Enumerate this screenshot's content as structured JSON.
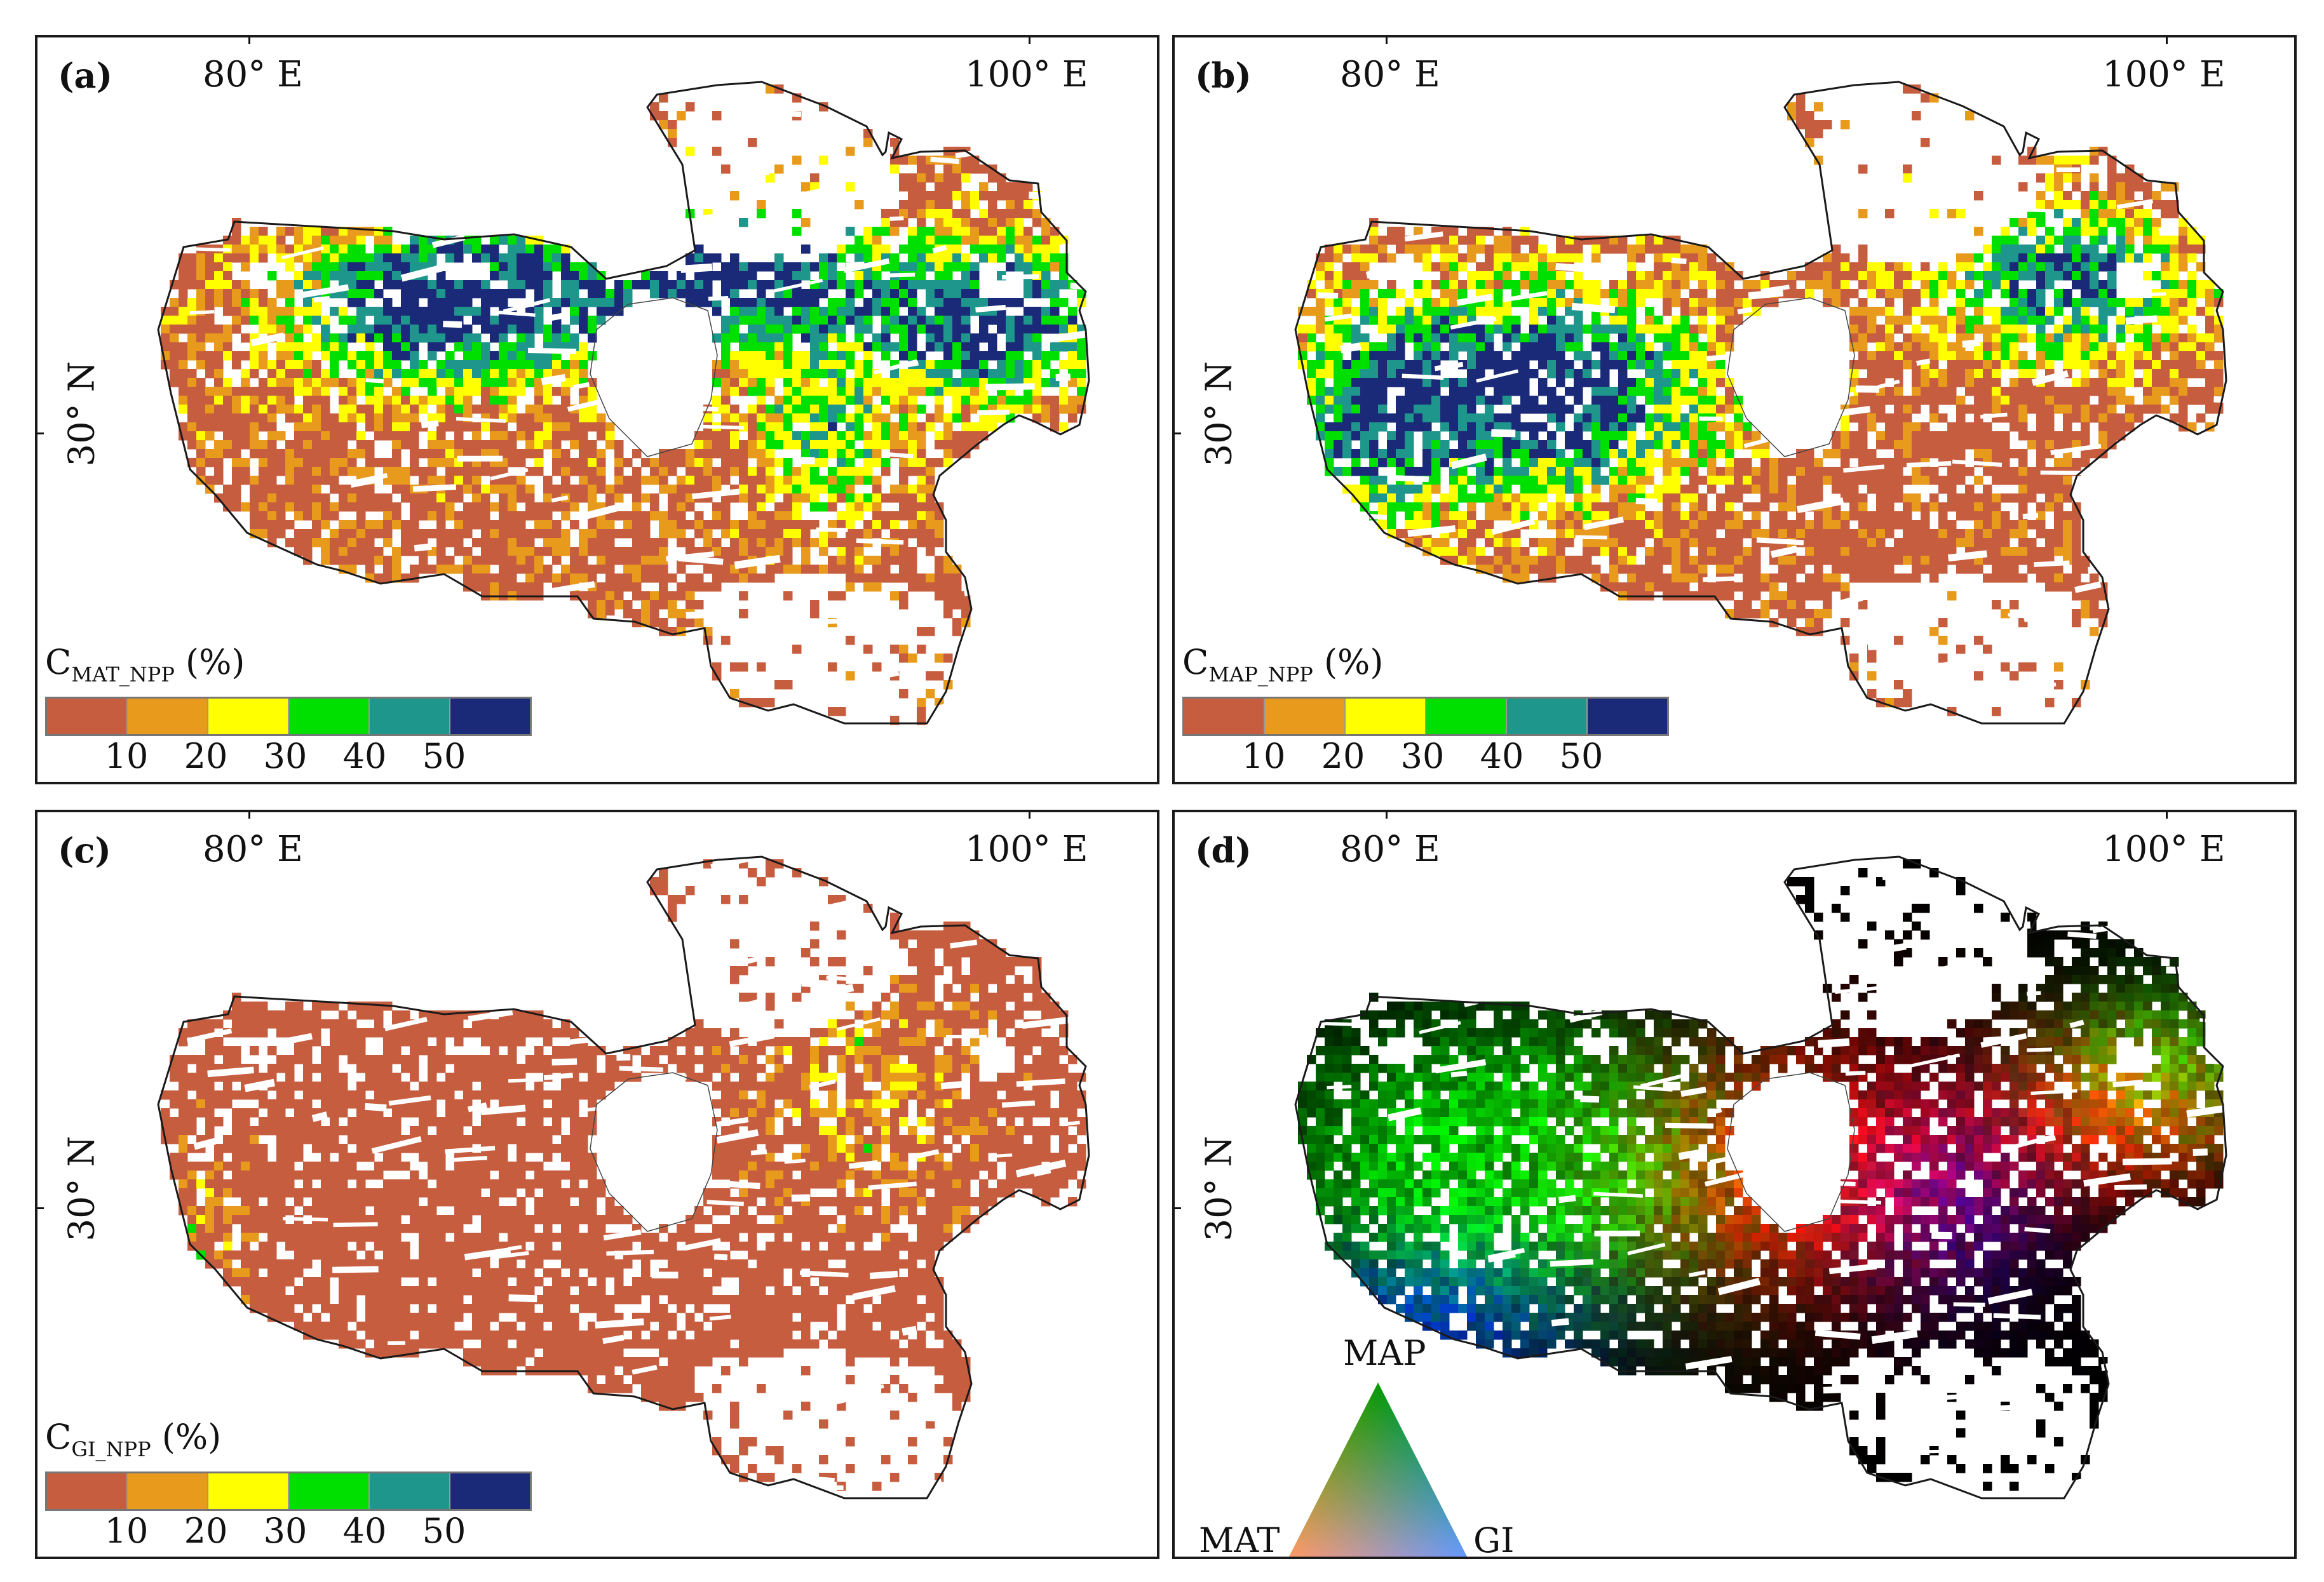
{
  "coords": {
    "lon_left": "80° E",
    "lon_right": "100° E",
    "lat": "30° N"
  },
  "colors": {
    "bins": [
      "#c75d3f",
      "#e89a1c",
      "#ffff00",
      "#00e000",
      "#1f968b",
      "#1a2a78"
    ],
    "outline": "#1a1a1a",
    "background": "#ffffff"
  },
  "legend_ticks": [
    "10",
    "20",
    "30",
    "40",
    "50"
  ],
  "panels": [
    {
      "id": "a",
      "label": "(a)",
      "legend_main": "C",
      "legend_sub": "MAT_NPP",
      "legend_unit": " (%)",
      "pattern": "mat"
    },
    {
      "id": "b",
      "label": "(b)",
      "legend_main": "C",
      "legend_sub": "MAP_NPP",
      "legend_unit": " (%)",
      "pattern": "map"
    },
    {
      "id": "c",
      "label": "(c)",
      "legend_main": "C",
      "legend_sub": "GI_NPP",
      "legend_unit": " (%)",
      "pattern": "gi"
    },
    {
      "id": "d",
      "label": "(d)",
      "pattern": "rgb"
    }
  ],
  "triangle": {
    "top": "MAP",
    "left": "MAT",
    "right": "GI"
  }
}
